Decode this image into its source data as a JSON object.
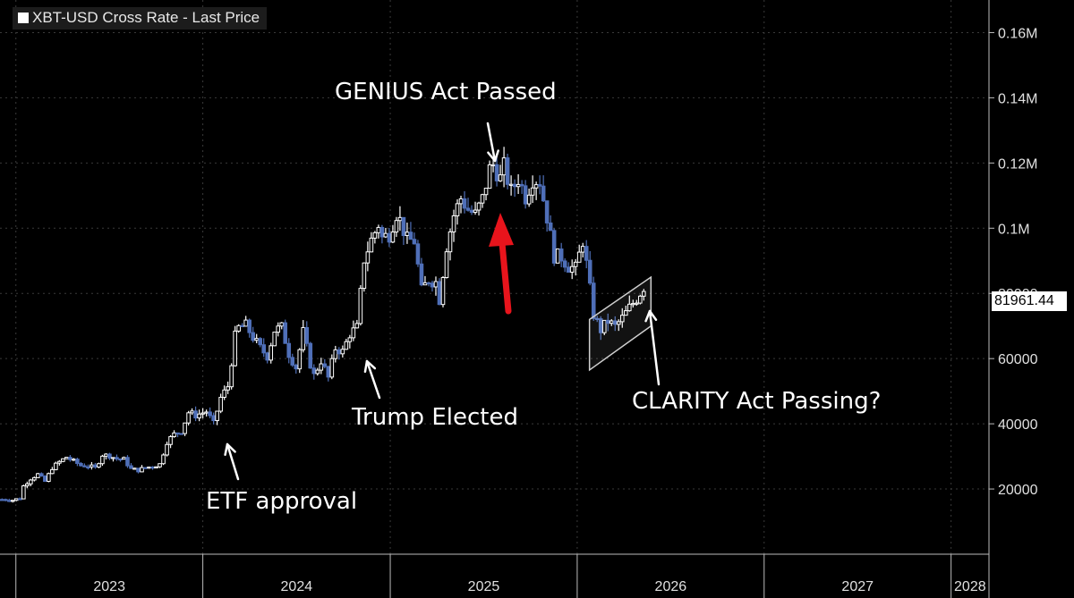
{
  "legend": {
    "label": "XBT-USD Cross Rate - Last Price"
  },
  "last_price_label": "81961.44",
  "annotations": {
    "genius": "GENIUS Act Passed",
    "trump": "Trump Elected",
    "etf": "ETF approval",
    "clarity": "CLARITY Act Passing?"
  },
  "colors": {
    "background": "#000000",
    "grid": "#3a3a3a",
    "up": "#ffffff",
    "down": "#4f6fb8",
    "arrow": "#e8141c",
    "channel": "#cfcfcf"
  },
  "chart_data": {
    "type": "candlestick",
    "title": "XBT-USD Cross Rate - Last Price",
    "x_ticks": [
      "2023",
      "2024",
      "2025",
      "2026",
      "2027",
      "2028"
    ],
    "y_ticks": [
      "20000",
      "40000",
      "60000",
      "80000",
      "0.1M",
      "0.12M",
      "0.14M",
      "0.16M"
    ],
    "ylim": [
      0,
      170000
    ],
    "xlim": [
      "2022-12-01",
      "2028-03-15"
    ],
    "grid": true,
    "last_price": 81961.44,
    "closes": [
      [
        "2022-12-05",
        16800
      ],
      [
        "2022-12-26",
        16600
      ],
      [
        "2023-01-09",
        17200
      ],
      [
        "2023-01-16",
        20900
      ],
      [
        "2023-01-30",
        23200
      ],
      [
        "2023-02-13",
        24500
      ],
      [
        "2023-02-27",
        22300
      ],
      [
        "2023-03-13",
        26500
      ],
      [
        "2023-03-27",
        28300
      ],
      [
        "2023-04-10",
        29800
      ],
      [
        "2023-04-24",
        28500
      ],
      [
        "2023-05-08",
        27200
      ],
      [
        "2023-05-22",
        27100
      ],
      [
        "2023-06-05",
        26400
      ],
      [
        "2023-06-19",
        30500
      ],
      [
        "2023-07-03",
        30200
      ],
      [
        "2023-07-17",
        29300
      ],
      [
        "2023-07-31",
        29100
      ],
      [
        "2023-08-14",
        26100
      ],
      [
        "2023-08-28",
        25800
      ],
      [
        "2023-09-11",
        26500
      ],
      [
        "2023-09-25",
        27000
      ],
      [
        "2023-10-09",
        27600
      ],
      [
        "2023-10-23",
        34500
      ],
      [
        "2023-11-06",
        36800
      ],
      [
        "2023-11-20",
        37800
      ],
      [
        "2023-12-04",
        43500
      ],
      [
        "2023-12-18",
        42600
      ],
      [
        "2024-01-08",
        43800
      ],
      [
        "2024-01-22",
        40000
      ],
      [
        "2024-02-05",
        48000
      ],
      [
        "2024-02-19",
        51500
      ],
      [
        "2024-03-04",
        66800
      ],
      [
        "2024-03-11",
        69500
      ],
      [
        "2024-03-25",
        70200
      ],
      [
        "2024-04-08",
        66500
      ],
      [
        "2024-04-22",
        63200
      ],
      [
        "2024-05-06",
        60800
      ],
      [
        "2024-05-20",
        68700
      ],
      [
        "2024-06-03",
        69600
      ],
      [
        "2024-06-17",
        61500
      ],
      [
        "2024-07-01",
        57300
      ],
      [
        "2024-07-15",
        68200
      ],
      [
        "2024-07-29",
        58300
      ],
      [
        "2024-08-05",
        54800
      ],
      [
        "2024-08-19",
        59400
      ],
      [
        "2024-09-02",
        54100
      ],
      [
        "2024-09-16",
        63200
      ],
      [
        "2024-09-30",
        62100
      ],
      [
        "2024-10-14",
        67600
      ],
      [
        "2024-10-28",
        69500
      ],
      [
        "2024-11-11",
        90500
      ],
      [
        "2024-11-25",
        96400
      ],
      [
        "2024-12-09",
        101200
      ],
      [
        "2024-12-16",
        97000
      ],
      [
        "2024-12-30",
        98200
      ],
      [
        "2025-01-13",
        104500
      ],
      [
        "2025-01-20",
        102400
      ],
      [
        "2025-02-03",
        96400
      ],
      [
        "2025-02-17",
        96100
      ],
      [
        "2025-03-03",
        80800
      ],
      [
        "2025-03-17",
        84200
      ],
      [
        "2025-03-31",
        83500
      ],
      [
        "2025-04-07",
        78200
      ],
      [
        "2025-04-21",
        94600
      ],
      [
        "2025-05-05",
        104000
      ],
      [
        "2025-05-19",
        109200
      ],
      [
        "2025-06-02",
        105700
      ],
      [
        "2025-06-16",
        104100
      ],
      [
        "2025-06-30",
        108900
      ],
      [
        "2025-07-14",
        118100
      ],
      [
        "2025-07-21",
        119500
      ],
      [
        "2025-08-04",
        115200
      ],
      [
        "2025-08-11",
        118800
      ],
      [
        "2025-08-25",
        111200
      ],
      [
        "2025-09-08",
        115300
      ],
      [
        "2025-09-22",
        109700
      ],
      [
        "2025-10-06",
        115200
      ],
      [
        "2025-10-20",
        114400
      ],
      [
        "2025-11-03",
        103500
      ],
      [
        "2025-11-17",
        91500
      ],
      [
        "2025-12-01",
        91200
      ],
      [
        "2025-12-15",
        88300
      ],
      [
        "2025-12-29",
        87600
      ],
      [
        "2026-01-12",
        96200
      ],
      [
        "2026-01-19",
        89000
      ],
      [
        "2026-02-02",
        73500
      ],
      [
        "2026-02-16",
        68800
      ],
      [
        "2026-03-02",
        71500
      ],
      [
        "2026-03-16",
        69800
      ],
      [
        "2026-03-30",
        72400
      ],
      [
        "2026-04-13",
        75600
      ],
      [
        "2026-04-27",
        78400
      ],
      [
        "2026-05-11",
        81961.44
      ]
    ]
  }
}
